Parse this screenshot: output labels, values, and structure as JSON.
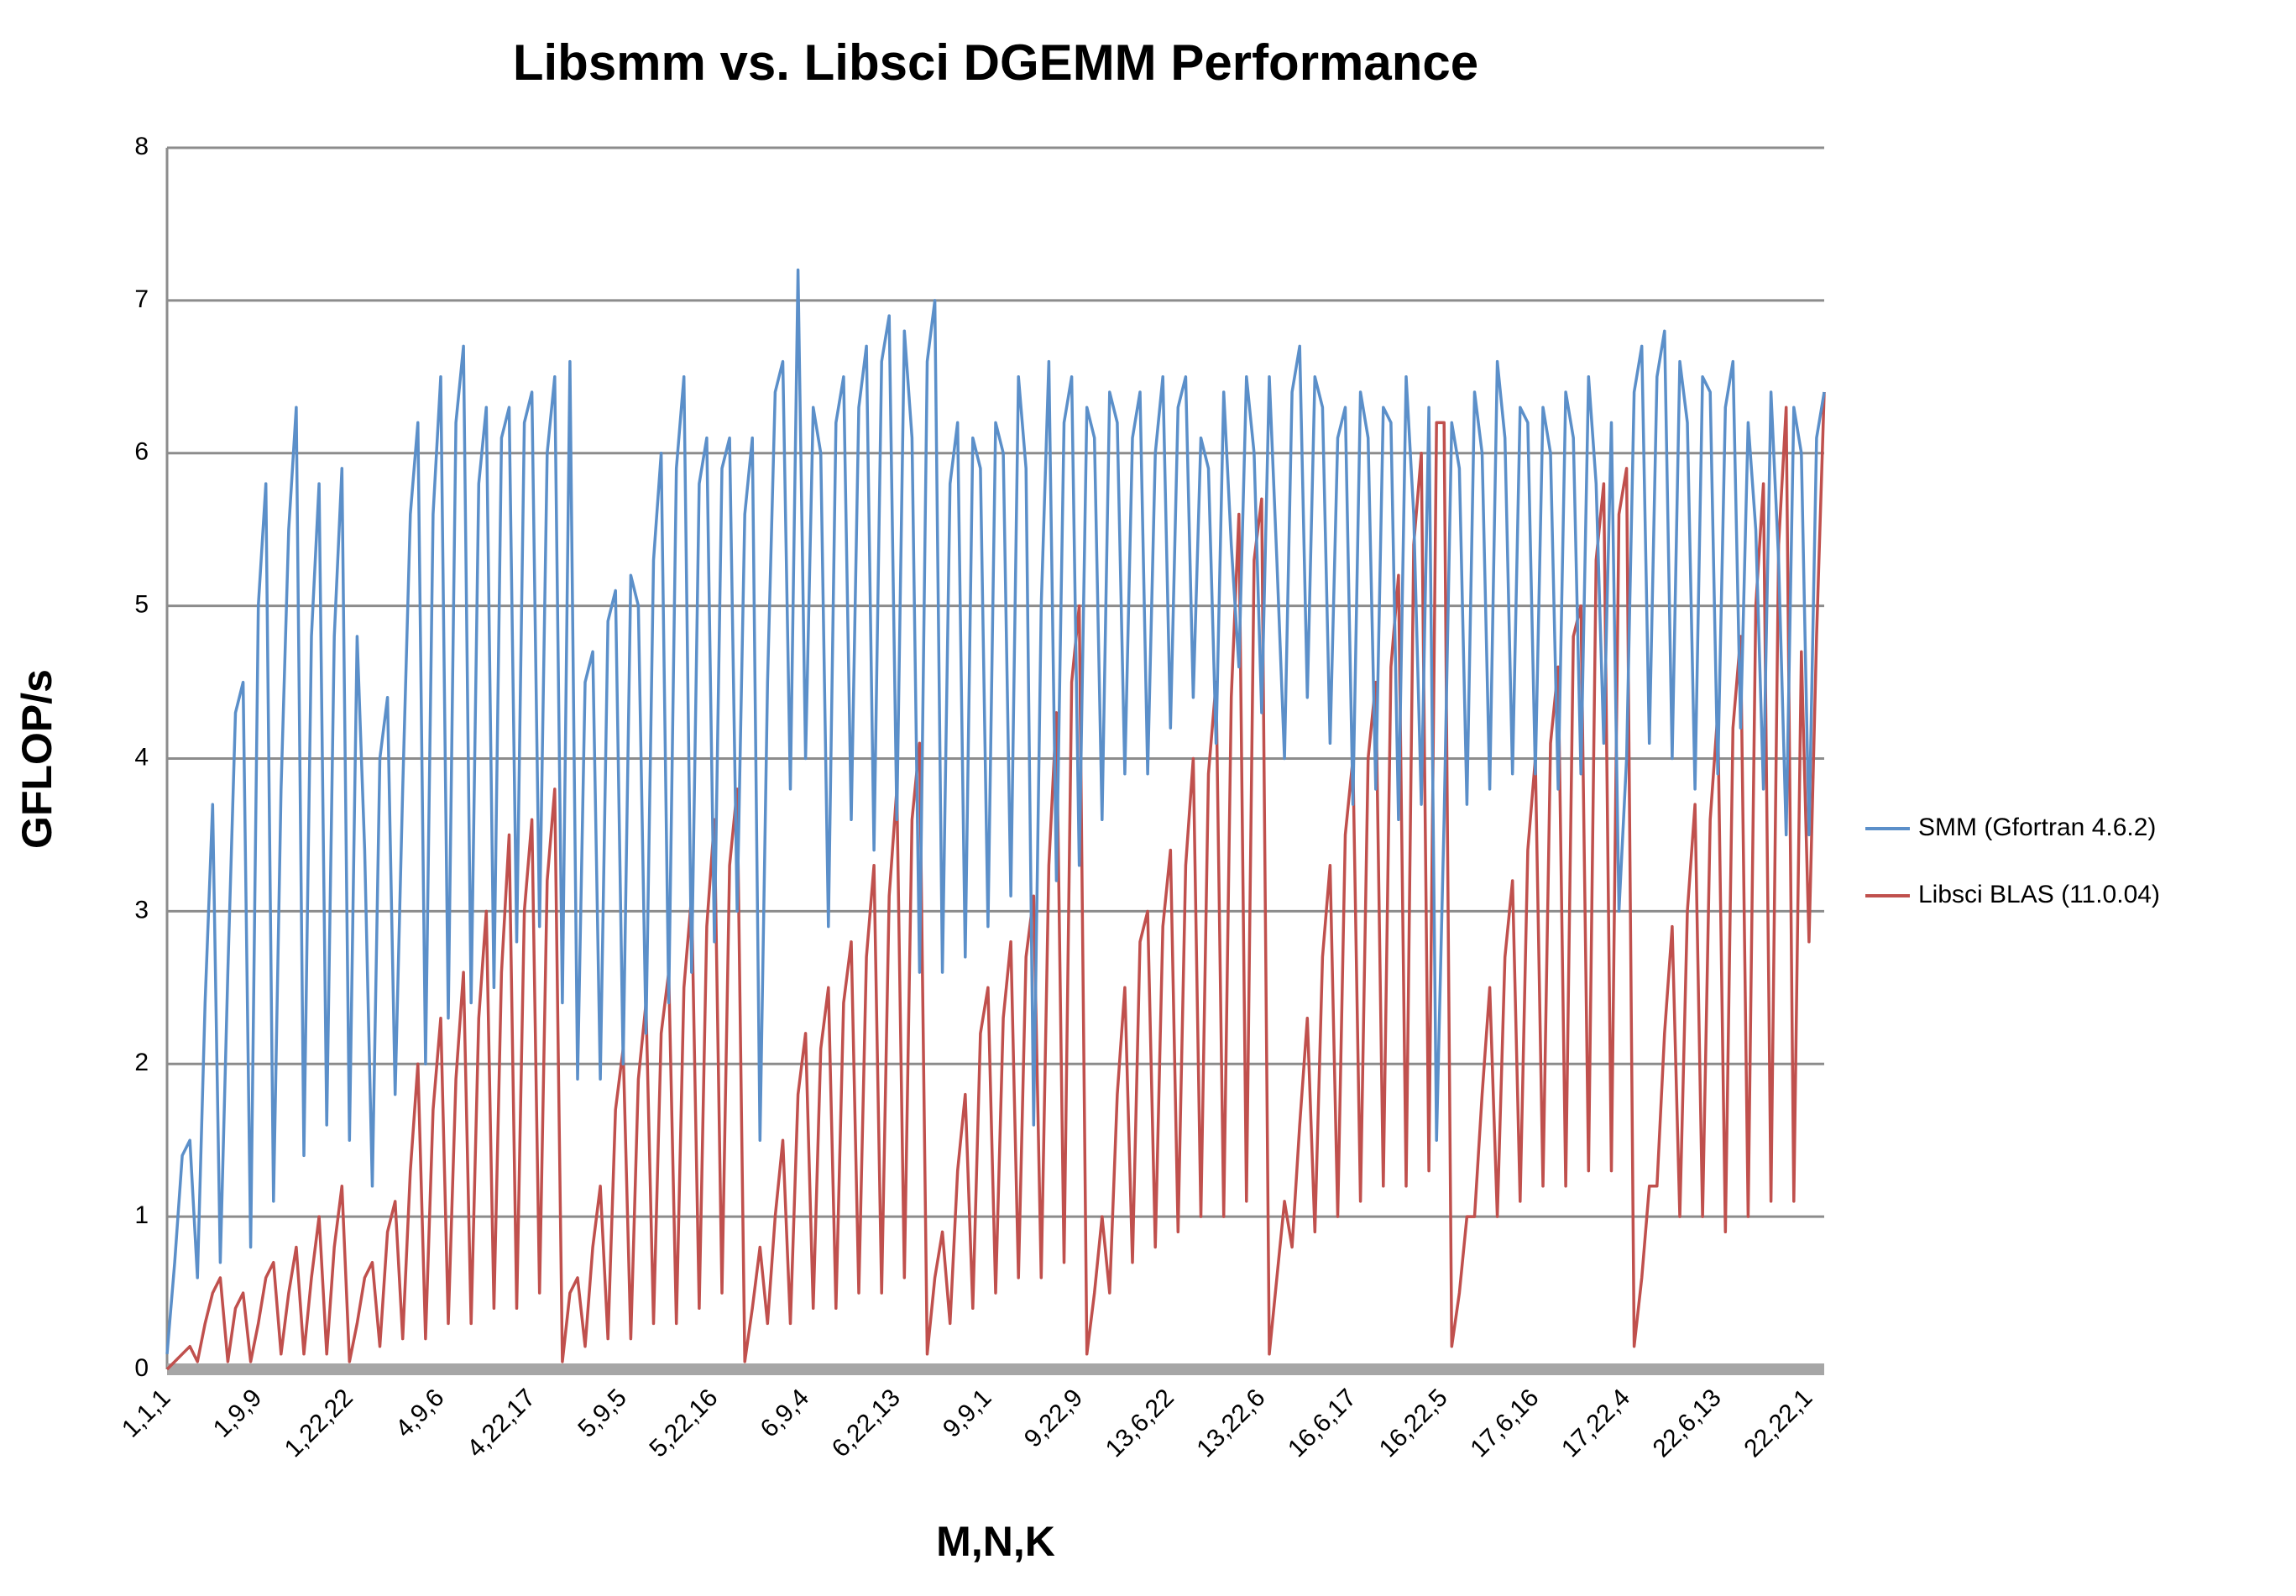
{
  "chart_data": {
    "type": "line",
    "title": "Libsmm vs. Libsci DGEMM Performance",
    "x_label": "M,N,K",
    "y_label": "GFLOP/s",
    "legend": "right",
    "grid": true,
    "ylim": [
      0,
      8
    ],
    "yticks": [
      0,
      1,
      2,
      3,
      4,
      5,
      6,
      7,
      8
    ],
    "categories": [
      "1,1,1",
      null,
      null,
      null,
      null,
      null,
      null,
      null,
      null,
      null,
      null,
      null,
      "1,9,9",
      null,
      null,
      null,
      null,
      null,
      null,
      null,
      null,
      null,
      null,
      null,
      "1,22,22",
      null,
      null,
      null,
      null,
      null,
      null,
      null,
      null,
      null,
      null,
      null,
      "4,9,6",
      null,
      null,
      null,
      null,
      null,
      null,
      null,
      null,
      null,
      null,
      null,
      "4,22,17",
      null,
      null,
      null,
      null,
      null,
      null,
      null,
      null,
      null,
      null,
      null,
      "5,9,5",
      null,
      null,
      null,
      null,
      null,
      null,
      null,
      null,
      null,
      null,
      null,
      "5,22,16",
      null,
      null,
      null,
      null,
      null,
      null,
      null,
      null,
      null,
      null,
      null,
      "6,9,4",
      null,
      null,
      null,
      null,
      null,
      null,
      null,
      null,
      null,
      null,
      null,
      "6,22,13",
      null,
      null,
      null,
      null,
      null,
      null,
      null,
      null,
      null,
      null,
      null,
      "9,9,1",
      null,
      null,
      null,
      null,
      null,
      null,
      null,
      null,
      null,
      null,
      null,
      "9,22,9",
      null,
      null,
      null,
      null,
      null,
      null,
      null,
      null,
      null,
      null,
      null,
      "13,6,22",
      null,
      null,
      null,
      null,
      null,
      null,
      null,
      null,
      null,
      null,
      null,
      "13,22,6",
      null,
      null,
      null,
      null,
      null,
      null,
      null,
      null,
      null,
      null,
      null,
      "16,6,17",
      null,
      null,
      null,
      null,
      null,
      null,
      null,
      null,
      null,
      null,
      null,
      "16,22,5",
      null,
      null,
      null,
      null,
      null,
      null,
      null,
      null,
      null,
      null,
      null,
      "17,6,16",
      null,
      null,
      null,
      null,
      null,
      null,
      null,
      null,
      null,
      null,
      null,
      "17,22,4",
      null,
      null,
      null,
      null,
      null,
      null,
      null,
      null,
      null,
      null,
      null,
      "22,6,13",
      null,
      null,
      null,
      null,
      null,
      null,
      null,
      null,
      null,
      null,
      null,
      "22,22,1",
      null,
      null
    ],
    "series": [
      {
        "name": "SMM (Gfortran 4.6.2)",
        "color": "#5b8fc9",
        "values": [
          0.1,
          0.7,
          1.4,
          1.5,
          0.6,
          2.4,
          3.7,
          0.7,
          2.6,
          4.3,
          4.5,
          0.8,
          5,
          5.8,
          1.1,
          3.8,
          5.5,
          6.3,
          1.4,
          4.8,
          5.8,
          1.6,
          4.8,
          5.9,
          1.5,
          4.8,
          3.4,
          1.2,
          4.0,
          4.4,
          1.8,
          3.8,
          5.6,
          6.2,
          2.0,
          5.6,
          6.5,
          2.3,
          6.2,
          6.7,
          2.4,
          5.8,
          6.3,
          2.5,
          6.1,
          6.3,
          2.8,
          6.2,
          6.4,
          2.9,
          6.0,
          6.5,
          2.4,
          6.6,
          1.9,
          4.5,
          4.7,
          1.9,
          4.9,
          5.1,
          2.0,
          5.2,
          5.0,
          2.2,
          5.3,
          6.0,
          2.4,
          5.9,
          6.5,
          2.6,
          5.8,
          6.1,
          2.8,
          5.9,
          6.1,
          3.0,
          5.6,
          6.1,
          1.5,
          4.5,
          6.4,
          6.6,
          3.8,
          7.2,
          4.0,
          6.3,
          6.0,
          2.9,
          6.2,
          6.5,
          3.6,
          6.3,
          6.7,
          3.4,
          6.6,
          6.9,
          3.6,
          6.8,
          6.1,
          2.6,
          6.6,
          7.0,
          2.6,
          5.8,
          6.2,
          2.7,
          6.1,
          5.9,
          2.9,
          6.2,
          6.0,
          3.1,
          6.5,
          5.9,
          1.6,
          5.0,
          6.6,
          3.2,
          6.2,
          6.5,
          3.3,
          6.3,
          6.1,
          3.6,
          6.4,
          6.2,
          3.9,
          6.1,
          6.4,
          3.9,
          6.0,
          6.5,
          4.2,
          6.3,
          6.5,
          4.4,
          6.1,
          5.9,
          4.1,
          6.4,
          5.4,
          4.6,
          6.5,
          6.0,
          4.3,
          6.5,
          5.3,
          4.0,
          6.4,
          6.7,
          4.4,
          6.5,
          6.3,
          4.1,
          6.1,
          6.3,
          3.7,
          6.4,
          6.1,
          3.8,
          6.3,
          6.2,
          3.6,
          6.5,
          5.6,
          3.7,
          6.3,
          1.5,
          3.6,
          6.2,
          5.9,
          3.7,
          6.4,
          6.0,
          3.8,
          6.6,
          6.1,
          3.9,
          6.3,
          6.2,
          3.9,
          6.3,
          6.0,
          3.8,
          6.4,
          6.1,
          3.9,
          6.5,
          5.8,
          4.1,
          6.2,
          3.0,
          4.0,
          6.4,
          6.7,
          4.1,
          6.5,
          6.8,
          4.0,
          6.6,
          6.2,
          3.8,
          6.5,
          6.4,
          3.9,
          6.3,
          6.6,
          4.2,
          6.2,
          5.5,
          3.8,
          6.4,
          5.3,
          3.5,
          6.3,
          6.0,
          3.5,
          6.1,
          6.4
        ]
      },
      {
        "name": "Libsci BLAS (11.0.04)",
        "color": "#c0504d",
        "values": [
          0.0,
          0.05,
          0.1,
          0.15,
          0.05,
          0.3,
          0.5,
          0.6,
          0.05,
          0.4,
          0.5,
          0.05,
          0.3,
          0.6,
          0.7,
          0.1,
          0.5,
          0.8,
          0.1,
          0.6,
          1.0,
          0.1,
          0.8,
          1.2,
          0.05,
          0.3,
          0.6,
          0.7,
          0.15,
          0.9,
          1.1,
          0.2,
          1.3,
          2.0,
          0.2,
          1.7,
          2.3,
          0.3,
          1.9,
          2.6,
          0.3,
          2.3,
          3.0,
          0.4,
          2.6,
          3.5,
          0.4,
          3.0,
          3.6,
          0.5,
          3.2,
          3.8,
          0.05,
          0.5,
          0.6,
          0.15,
          0.8,
          1.2,
          0.2,
          1.7,
          2.1,
          0.2,
          1.9,
          2.4,
          0.3,
          2.2,
          2.6,
          0.3,
          2.5,
          3.1,
          0.4,
          2.9,
          3.6,
          0.5,
          3.3,
          3.8,
          0.05,
          0.4,
          0.8,
          0.3,
          1.0,
          1.5,
          0.3,
          1.8,
          2.2,
          0.4,
          2.1,
          2.5,
          0.4,
          2.4,
          2.8,
          0.5,
          2.7,
          3.3,
          0.5,
          3.1,
          3.8,
          0.6,
          3.6,
          4.1,
          0.1,
          0.6,
          0.9,
          0.3,
          1.3,
          1.8,
          0.4,
          2.2,
          2.5,
          0.5,
          2.3,
          2.8,
          0.6,
          2.7,
          3.1,
          0.6,
          3.3,
          4.3,
          0.7,
          4.5,
          5.0,
          0.1,
          0.5,
          1.0,
          0.5,
          1.8,
          2.5,
          0.7,
          2.8,
          3.0,
          0.8,
          2.9,
          3.4,
          0.9,
          3.3,
          4.0,
          1.0,
          3.9,
          4.5,
          1.0,
          4.4,
          5.6,
          1.1,
          5.3,
          5.7,
          0.1,
          0.6,
          1.1,
          0.8,
          1.6,
          2.3,
          0.9,
          2.7,
          3.3,
          1.0,
          3.5,
          4.0,
          1.1,
          4.0,
          4.5,
          1.2,
          4.6,
          5.2,
          1.2,
          5.4,
          6.0,
          1.3,
          6.2,
          6.2,
          0.15,
          0.5,
          1.0,
          1.0,
          1.8,
          2.5,
          1.0,
          2.7,
          3.2,
          1.1,
          3.4,
          4.0,
          1.2,
          4.1,
          4.6,
          1.2,
          4.8,
          5.0,
          1.3,
          5.3,
          5.8,
          1.3,
          5.6,
          5.9,
          0.15,
          0.6,
          1.2,
          1.2,
          2.2,
          2.9,
          1.0,
          3.0,
          3.7,
          1.0,
          3.6,
          4.3,
          0.9,
          4.2,
          4.8,
          1.0,
          5.0,
          5.8,
          1.1,
          5.4,
          6.3,
          1.1,
          4.7,
          2.8,
          4.8,
          6.4
        ]
      }
    ]
  }
}
